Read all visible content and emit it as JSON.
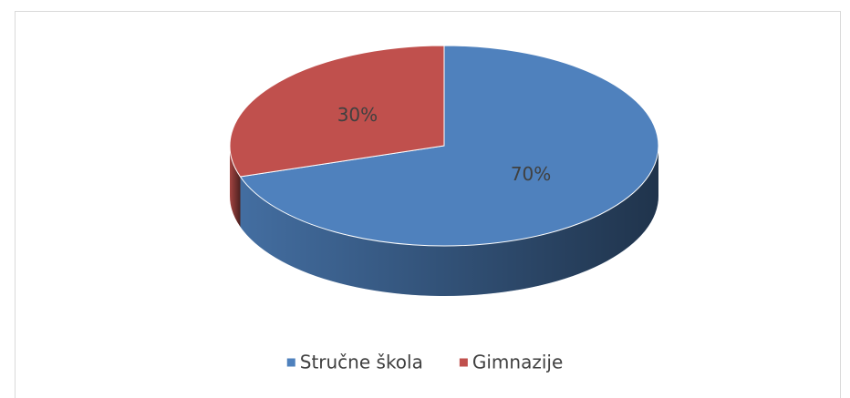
{
  "chart_data": {
    "type": "pie",
    "categories": [
      "Stručne škola",
      "Gimnazije"
    ],
    "values": [
      70,
      30
    ],
    "value_labels": [
      "70%",
      "30%"
    ],
    "colors": [
      "#4f81bd",
      "#c0504d"
    ],
    "legend": "bottom"
  }
}
